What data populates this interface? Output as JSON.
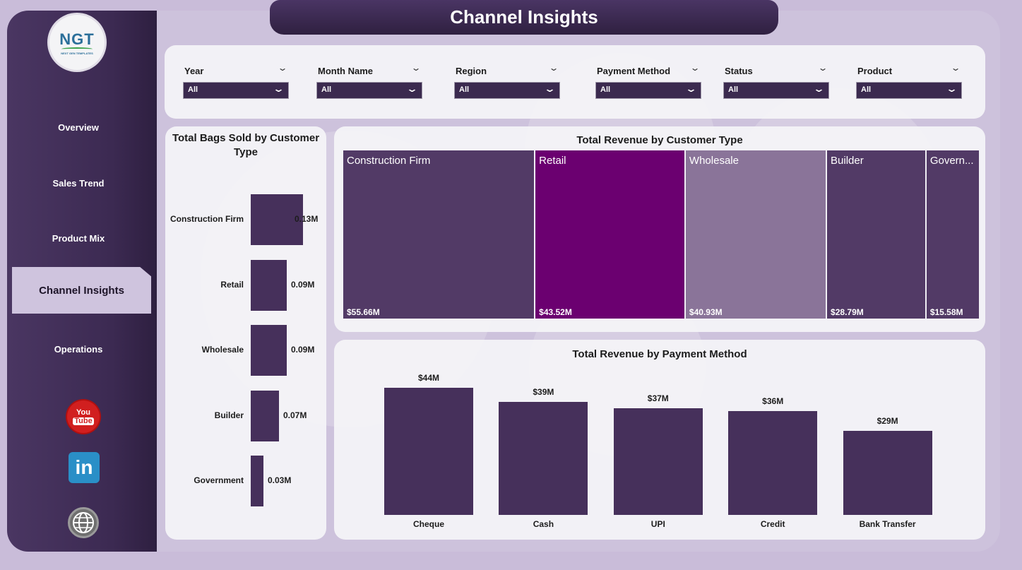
{
  "page_title": "Channel Insights",
  "logo": {
    "text": "NGT",
    "subtitle": "NEXT GEN TEMPLATES"
  },
  "nav": {
    "items": [
      {
        "label": "Overview"
      },
      {
        "label": "Sales Trend"
      },
      {
        "label": "Product Mix"
      },
      {
        "label": "Channel Insights",
        "active": true
      },
      {
        "label": "Operations"
      }
    ]
  },
  "social": {
    "youtube_top": "You",
    "youtube_bottom": "Tube",
    "linkedin": "in"
  },
  "filters": [
    {
      "label": "Year",
      "value": "All"
    },
    {
      "label": "Month Name",
      "value": "All"
    },
    {
      "label": "Region",
      "value": "All"
    },
    {
      "label": "Payment Method",
      "value": "All"
    },
    {
      "label": "Status",
      "value": "All"
    },
    {
      "label": "Product",
      "value": "All"
    }
  ],
  "colors": {
    "primary": "#46305b",
    "retail": "#6b0070",
    "wholesale": "#8a7499",
    "sidebar": "#3c2a52"
  },
  "chart_data": [
    {
      "type": "bar",
      "orientation": "horizontal",
      "title": "Total Bags Sold by Customer Type",
      "categories": [
        "Construction Firm",
        "Retail",
        "Wholesale",
        "Builder",
        "Government"
      ],
      "values": [
        0.13,
        0.09,
        0.09,
        0.07,
        0.03
      ],
      "value_labels": [
        "0.13M",
        "0.09M",
        "0.09M",
        "0.07M",
        "0.03M"
      ],
      "xlim": [
        0,
        0.13
      ]
    },
    {
      "type": "treemap",
      "title": "Total Revenue by Customer Type",
      "categories": [
        "Construction Firm",
        "Retail",
        "Wholesale",
        "Builder",
        "Govern..."
      ],
      "values": [
        55.66,
        43.52,
        40.93,
        28.79,
        15.58
      ],
      "value_labels": [
        "$55.66M",
        "$43.52M",
        "$40.93M",
        "$28.79M",
        "$15.58M"
      ],
      "colors": [
        "#523a66",
        "#6b0070",
        "#8a7499",
        "#523a66",
        "#523a66"
      ]
    },
    {
      "type": "bar",
      "title": "Total Revenue by Payment Method",
      "categories": [
        "Cheque",
        "Cash",
        "UPI",
        "Credit",
        "Bank Transfer"
      ],
      "values": [
        44,
        39,
        37,
        36,
        29
      ],
      "value_labels": [
        "$44M",
        "$39M",
        "$37M",
        "$36M",
        "$29M"
      ],
      "ylim": [
        0,
        44
      ]
    }
  ]
}
